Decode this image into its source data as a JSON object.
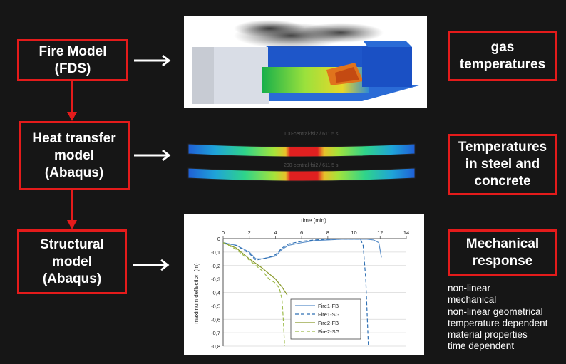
{
  "left_boxes": [
    {
      "lines": [
        "Fire Model",
        "(FDS)"
      ]
    },
    {
      "lines": [
        "Heat transfer",
        "model",
        "(Abaqus)"
      ]
    },
    {
      "lines": [
        "Structural",
        "model",
        "(Abaqus)"
      ]
    }
  ],
  "right_boxes": [
    {
      "lines": [
        "gas",
        "temperatures"
      ]
    },
    {
      "lines": [
        "Temperatures",
        "in steel and",
        "concrete"
      ]
    },
    {
      "lines": [
        "Mechanical",
        "response"
      ]
    }
  ],
  "notes": [
    "non-linear",
    "mechanical",
    "non-linear geometrical",
    "temperature dependent",
    "material properties",
    "time dependent"
  ],
  "heat_panel": {
    "label1": "100-central-fsi2  /  611.5 s",
    "label2": "200-central-fsi2  /  611.5 s"
  },
  "colors": {
    "box_border": "#e41b1b",
    "background": "#161616"
  },
  "chart_data": {
    "type": "line",
    "xlabel": "time (min)",
    "ylabel": "maximum deflection (m)",
    "xlim": [
      0,
      14
    ],
    "ylim": [
      -0.8,
      0
    ],
    "xticks": [
      "0",
      "2",
      "4",
      "6",
      "8",
      "10",
      "12",
      "14"
    ],
    "yticks": [
      "0",
      "-0,1",
      "-0,2",
      "-0,3",
      "-0,4",
      "-0,5",
      "-0,6",
      "-0,7",
      "-0,8"
    ],
    "legend_position": "lower-center",
    "series": [
      {
        "name": "Fire1-FB",
        "color": "#5b8fc9",
        "dash": "none",
        "x": [
          0,
          1,
          2,
          2.5,
          3,
          3.5,
          4,
          4.5,
          5,
          6,
          7,
          8,
          9,
          10,
          11,
          11.5,
          11.9,
          12.1
        ],
        "y": [
          -0.03,
          -0.05,
          -0.1,
          -0.15,
          -0.15,
          -0.14,
          -0.13,
          -0.08,
          -0.05,
          -0.03,
          -0.015,
          -0.01,
          -0.005,
          -0.005,
          -0.005,
          -0.01,
          -0.03,
          -0.14
        ]
      },
      {
        "name": "Fire1-SG",
        "color": "#2e6fb3",
        "dash": "5,3",
        "x": [
          0,
          1,
          2,
          2.5,
          3,
          3.5,
          4,
          4.5,
          5,
          6,
          7,
          8,
          9,
          10,
          10.5,
          10.7,
          10.9,
          11.1
        ],
        "y": [
          -0.03,
          -0.05,
          -0.11,
          -0.16,
          -0.15,
          -0.14,
          -0.12,
          -0.07,
          -0.04,
          -0.02,
          -0.01,
          -0.005,
          -0.003,
          -0.003,
          -0.005,
          -0.05,
          -0.3,
          -0.8
        ]
      },
      {
        "name": "Fire2-FB",
        "color": "#8a9a2c",
        "dash": "none",
        "x": [
          0,
          1,
          2,
          3,
          3.5,
          4,
          4.5,
          4.9
        ],
        "y": [
          -0.03,
          -0.07,
          -0.15,
          -0.22,
          -0.26,
          -0.3,
          -0.36,
          -0.42
        ]
      },
      {
        "name": "Fire2-SG",
        "color": "#9dbb4a",
        "dash": "5,3",
        "x": [
          0,
          1,
          2,
          3,
          3.5,
          4,
          4.3,
          4.5,
          4.6,
          4.7
        ],
        "y": [
          -0.03,
          -0.08,
          -0.16,
          -0.24,
          -0.3,
          -0.33,
          -0.37,
          -0.45,
          -0.6,
          -0.8
        ]
      }
    ]
  }
}
